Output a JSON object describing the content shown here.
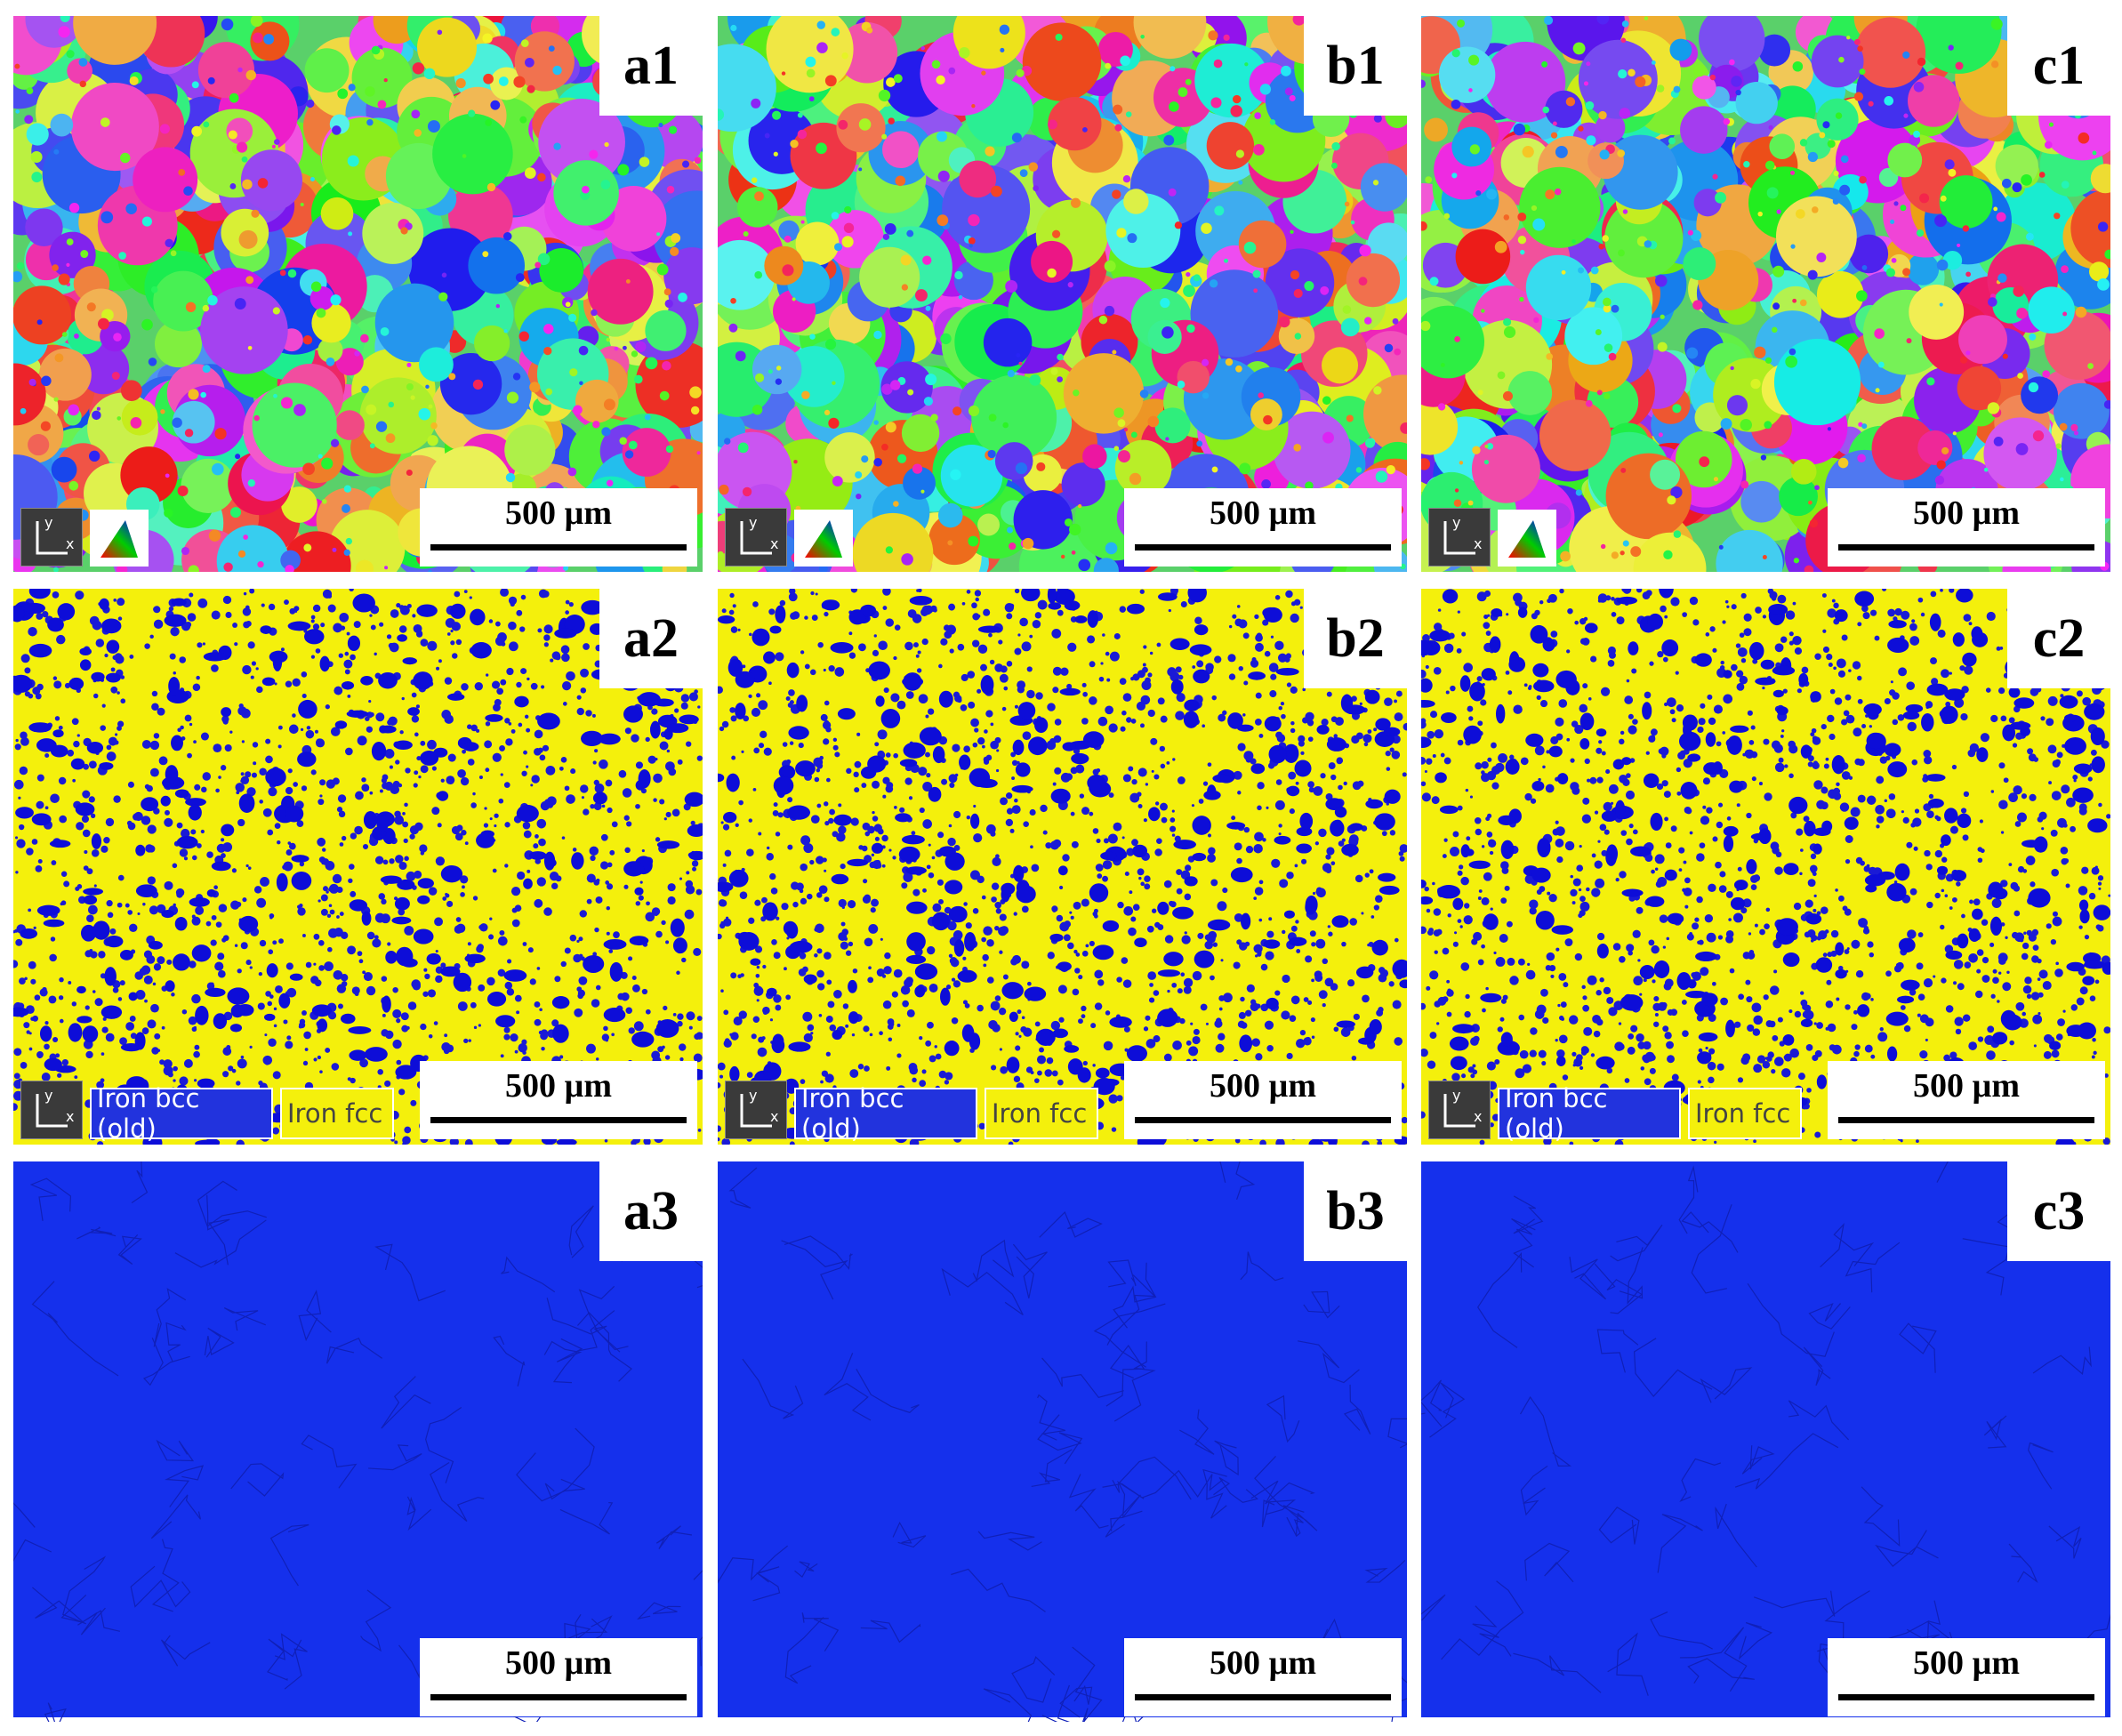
{
  "rows": [
    {
      "panels": [
        {
          "label": "a1",
          "scale_bar": "500 µm",
          "axis_labels": [
            "y",
            "x"
          ]
        },
        {
          "label": "b1",
          "scale_bar": "500 µm",
          "axis_labels": [
            "y",
            "x"
          ]
        },
        {
          "label": "c1",
          "scale_bar": "500 µm",
          "axis_labels": [
            "y",
            "x"
          ]
        }
      ]
    },
    {
      "panels": [
        {
          "label": "a2",
          "scale_bar": "500 µm",
          "axis_labels": [
            "y",
            "x"
          ],
          "legend": [
            "Iron bcc (old)",
            "Iron fcc"
          ]
        },
        {
          "label": "b2",
          "scale_bar": "500 µm",
          "axis_labels": [
            "y",
            "x"
          ],
          "legend": [
            "Iron bcc (old)",
            "Iron fcc"
          ]
        },
        {
          "label": "c2",
          "scale_bar": "500 µm",
          "axis_labels": [
            "y",
            "x"
          ],
          "legend": [
            "Iron bcc (old)",
            "Iron fcc"
          ]
        }
      ]
    },
    {
      "panels": [
        {
          "label": "a3",
          "scale_bar": "500 µm"
        },
        {
          "label": "b3",
          "scale_bar": "500 µm"
        },
        {
          "label": "c3",
          "scale_bar": "500 µm"
        }
      ]
    }
  ]
}
